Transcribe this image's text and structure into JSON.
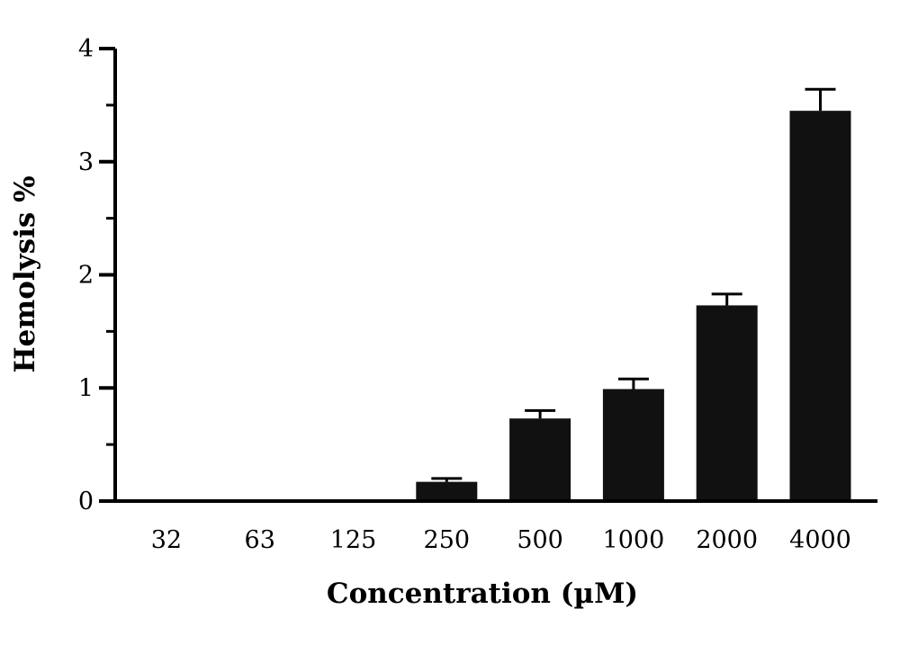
{
  "chart_data": {
    "type": "bar",
    "title": "",
    "xlabel": "Concentration (µM)",
    "ylabel": "Hemolysis %",
    "categories": [
      "32",
      "63",
      "125",
      "250",
      "500",
      "1000",
      "2000",
      "4000"
    ],
    "values": [
      0,
      0,
      0,
      0.17,
      0.73,
      0.99,
      1.73,
      3.45
    ],
    "errors": [
      0,
      0,
      0,
      0.03,
      0.07,
      0.09,
      0.1,
      0.19
    ],
    "ylim": [
      0,
      4
    ],
    "yticks": [
      "0",
      "1",
      "2",
      "3",
      "4"
    ],
    "grid": false,
    "legend": "none",
    "bar_color": "#111111",
    "axis_color": "#000000"
  }
}
